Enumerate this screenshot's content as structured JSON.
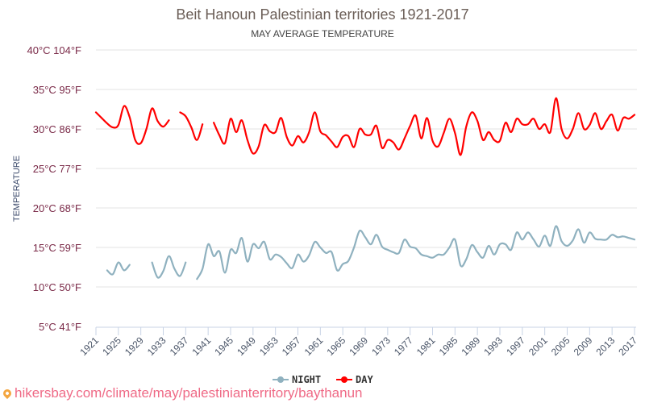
{
  "chart_data": {
    "type": "line",
    "title": "Beit Hanoun Palestinian territories 1921-2017",
    "subtitle": "MAY AVERAGE TEMPERATURE",
    "xlabel": "",
    "ylabel": "TEMPERATURE",
    "ylim": [
      5,
      40
    ],
    "xlim": [
      1921,
      2017
    ],
    "grid": true,
    "legend_placement": "bottom-center",
    "yticks": [
      {
        "value": 40,
        "label": "40°C 104°F"
      },
      {
        "value": 35,
        "label": "35°C 95°F"
      },
      {
        "value": 30,
        "label": "30°C 86°F"
      },
      {
        "value": 25,
        "label": "25°C 77°F"
      },
      {
        "value": 20,
        "label": "20°C 68°F"
      },
      {
        "value": 15,
        "label": "15°C 59°F"
      },
      {
        "value": 10,
        "label": "10°C 50°F"
      },
      {
        "value": 5,
        "label": "5°C 41°F"
      }
    ],
    "xticks": [
      "1921",
      "1925",
      "1929",
      "1933",
      "1937",
      "1941",
      "1945",
      "1949",
      "1953",
      "1957",
      "1961",
      "1965",
      "1969",
      "1973",
      "1977",
      "1981",
      "1985",
      "1989",
      "1993",
      "1997",
      "2001",
      "2005",
      "2009",
      "2013",
      "2017"
    ],
    "x_start": 1921,
    "series": [
      {
        "name": "NIGHT",
        "color": "#8fb1bf",
        "values": [
          null,
          null,
          12.1,
          11.6,
          13.1,
          12.1,
          12.8,
          null,
          null,
          null,
          13.1,
          11.2,
          12.0,
          13.9,
          12.3,
          11.4,
          13.1,
          null,
          11.0,
          12.3,
          15.4,
          13.9,
          14.5,
          11.8,
          14.7,
          14.3,
          16.2,
          13.2,
          15.4,
          14.9,
          15.7,
          13.5,
          14.1,
          13.8,
          13.0,
          12.4,
          14.1,
          13.2,
          14.0,
          15.7,
          15.0,
          14.3,
          14.4,
          12.1,
          12.9,
          13.3,
          15.0,
          17.1,
          16.3,
          15.4,
          16.6,
          15.1,
          14.7,
          14.4,
          14.3,
          16.0,
          15.1,
          14.9,
          14.1,
          13.9,
          13.7,
          14.1,
          14.1,
          15.0,
          16.0,
          12.7,
          13.5,
          15.3,
          14.4,
          13.7,
          15.2,
          14.1,
          15.4,
          15.4,
          14.7,
          16.9,
          16.0,
          16.9,
          16.0,
          15.1,
          16.5,
          15.2,
          17.7,
          15.8,
          15.2,
          15.9,
          17.3,
          15.6,
          16.9,
          16.1,
          16.0,
          16.0,
          16.6,
          16.3,
          16.4,
          16.2,
          16.0
        ]
      },
      {
        "name": "DAY",
        "color": "#ff0000",
        "values": [
          32.1,
          31.4,
          30.7,
          30.2,
          30.5,
          32.9,
          31.5,
          28.6,
          28.2,
          30.0,
          32.6,
          31.0,
          30.3,
          31.1,
          null,
          32.1,
          31.6,
          30.2,
          28.6,
          30.6,
          null,
          30.8,
          29.2,
          28.2,
          31.3,
          29.6,
          31.1,
          28.6,
          26.9,
          27.8,
          30.5,
          29.7,
          29.6,
          31.4,
          29.0,
          27.9,
          29.1,
          28.3,
          29.6,
          32.1,
          29.7,
          29.2,
          28.4,
          27.7,
          29.0,
          29.1,
          27.7,
          30.0,
          29.3,
          29.3,
          30.4,
          27.6,
          28.6,
          28.3,
          27.4,
          28.8,
          30.4,
          31.7,
          28.8,
          31.4,
          28.5,
          27.8,
          29.5,
          31.3,
          29.5,
          26.7,
          30.3,
          32.1,
          31.0,
          28.6,
          29.6,
          28.6,
          28.5,
          30.8,
          29.6,
          31.3,
          30.6,
          30.6,
          31.3,
          30.0,
          30.6,
          29.6,
          33.9,
          30.0,
          28.8,
          30.0,
          32.0,
          30.0,
          30.5,
          32.0,
          30.0,
          31.0,
          31.8,
          29.8,
          31.4,
          31.3,
          31.8
        ]
      }
    ]
  },
  "legend": {
    "items": [
      {
        "label": "NIGHT",
        "color": "#8fb1bf"
      },
      {
        "label": "DAY",
        "color": "#ff0000"
      }
    ]
  },
  "footer": {
    "source_text": "hikersbay.com/climate/may/palestinianterritory/baythanun",
    "pin_icon": "map-pin-icon"
  }
}
